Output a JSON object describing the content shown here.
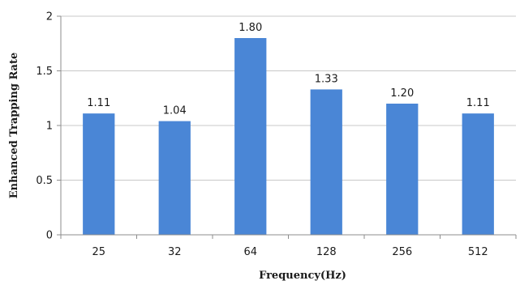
{
  "chart_data": {
    "type": "bar",
    "categories": [
      "25",
      "32",
      "64",
      "128",
      "256",
      "512"
    ],
    "values": [
      1.11,
      1.04,
      1.8,
      1.33,
      1.2,
      1.11
    ],
    "data_labels": [
      "1.11",
      "1.04",
      "1.80",
      "1.33",
      "1.20",
      "1.11"
    ],
    "xlabel": "Frequency(Hz)",
    "ylabel": "Enhanced  Trapping  Rate",
    "ylim": [
      0,
      2
    ],
    "yticks": [
      0,
      0.5,
      1,
      1.5,
      2
    ],
    "ytick_labels": [
      "0",
      "0.5",
      "1",
      "1.5",
      "2"
    ],
    "grid": "horizontal",
    "legend": "none",
    "bar_color": "#4a86d6",
    "grid_color": "#c8c8c8",
    "axis_color": "#8c8c8c"
  }
}
